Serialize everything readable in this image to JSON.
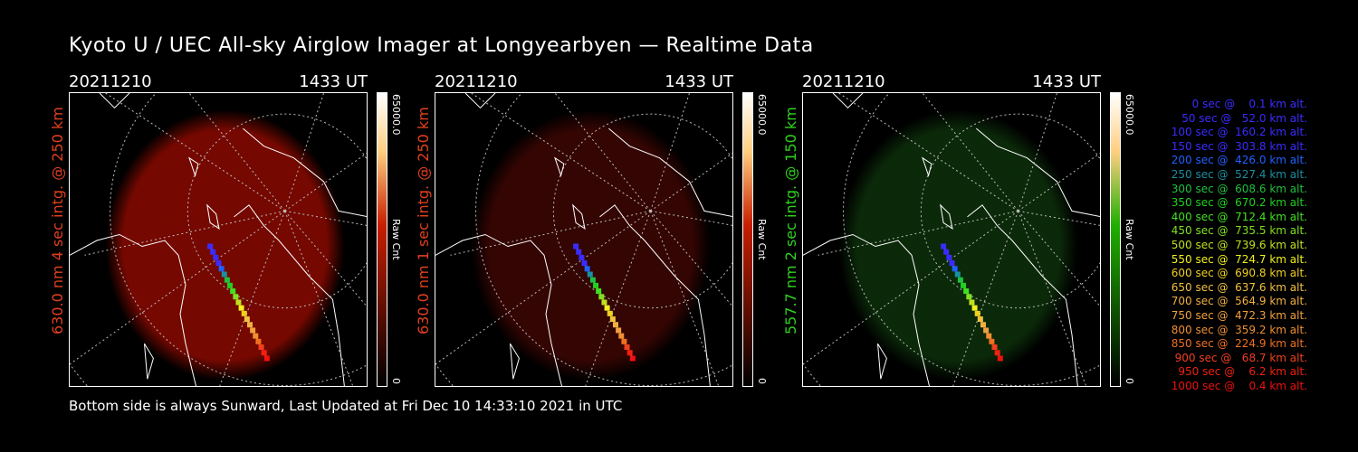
{
  "title": "Kyoto U / UEC All-sky Airglow Imager at Longyearbyen — Realtime Data",
  "footer": "Bottom side is always Sunward, Last Updated at Fri Dec 10 14:33:10 2021 in UTC",
  "panels": [
    {
      "date": "20211210",
      "time": "1433 UT",
      "side_label": "630.0 nm 4 sec intg. @ 250 km",
      "label_color": "#e04020",
      "colorbar_max": "65000.0",
      "colorbar_min": "0",
      "colorbar_unit": "Raw Cnt",
      "colorbar_color": "#c81e00",
      "glow_color": "#8a0a00",
      "glow_opacity": 0.85
    },
    {
      "date": "20211210",
      "time": "1433 UT",
      "side_label": "630.0 nm 1 sec intg. @ 250 km",
      "label_color": "#e04020",
      "colorbar_max": "65000.0",
      "colorbar_min": "0",
      "colorbar_unit": "Raw Cnt",
      "colorbar_color": "#c81e00",
      "glow_color": "#3a0603",
      "glow_opacity": 0.9
    },
    {
      "date": "20211210",
      "time": "1433 UT",
      "side_label": "557.7 nm 2 sec intg. @ 150 km",
      "label_color": "#30d020",
      "colorbar_max": "65000.0",
      "colorbar_min": "0",
      "colorbar_unit": "Raw Cnt",
      "colorbar_color": "#20b000",
      "glow_color": "#0c2e0a",
      "glow_opacity": 0.9
    }
  ],
  "legend": [
    {
      "text": "   0 sec @    0.1 km alt.",
      "color": "#3a2cff"
    },
    {
      "text": "  50 sec @   52.0 km alt.",
      "color": "#3a2cff"
    },
    {
      "text": " 100 sec @  160.2 km alt.",
      "color": "#3a2cff"
    },
    {
      "text": " 150 sec @  303.8 km alt.",
      "color": "#3a2cff"
    },
    {
      "text": " 200 sec @  426.0 km alt.",
      "color": "#2060ff"
    },
    {
      "text": " 250 sec @  527.4 km alt.",
      "color": "#1a8fa0"
    },
    {
      "text": " 300 sec @  608.6 km alt.",
      "color": "#20c040"
    },
    {
      "text": " 350 sec @  670.2 km alt.",
      "color": "#20d020"
    },
    {
      "text": " 400 sec @  712.4 km alt.",
      "color": "#40e020"
    },
    {
      "text": " 450 sec @  735.5 km alt.",
      "color": "#80e020"
    },
    {
      "text": " 500 sec @  739.6 km alt.",
      "color": "#c0e020"
    },
    {
      "text": " 550 sec @  724.7 km alt.",
      "color": "#f0f020"
    },
    {
      "text": " 600 sec @  690.8 km alt.",
      "color": "#f0d020"
    },
    {
      "text": " 650 sec @  637.6 km alt.",
      "color": "#f0c040"
    },
    {
      "text": " 700 sec @  564.9 km alt.",
      "color": "#f0b040"
    },
    {
      "text": " 750 sec @  472.3 km alt.",
      "color": "#f0a040"
    },
    {
      "text": " 800 sec @  359.2 km alt.",
      "color": "#f09030"
    },
    {
      "text": " 850 sec @  224.9 km alt.",
      "color": "#f07020"
    },
    {
      "text": " 900 sec @   68.7 km alt.",
      "color": "#f04020"
    },
    {
      "text": " 950 sec @    6.2 km alt.",
      "color": "#f02010"
    },
    {
      "text": "1000 sec @    0.4 km alt.",
      "color": "#f01010"
    }
  ],
  "track_colors": [
    "#3a2cff",
    "#3a2cff",
    "#3a2cff",
    "#3a2cff",
    "#2060ff",
    "#1a8fa0",
    "#20c040",
    "#20d020",
    "#40e020",
    "#80e020",
    "#c0e020",
    "#f0f020",
    "#f0d020",
    "#f0c040",
    "#f0b040",
    "#f0a040",
    "#f09030",
    "#f07020",
    "#f04020",
    "#f02010",
    "#f01010"
  ]
}
